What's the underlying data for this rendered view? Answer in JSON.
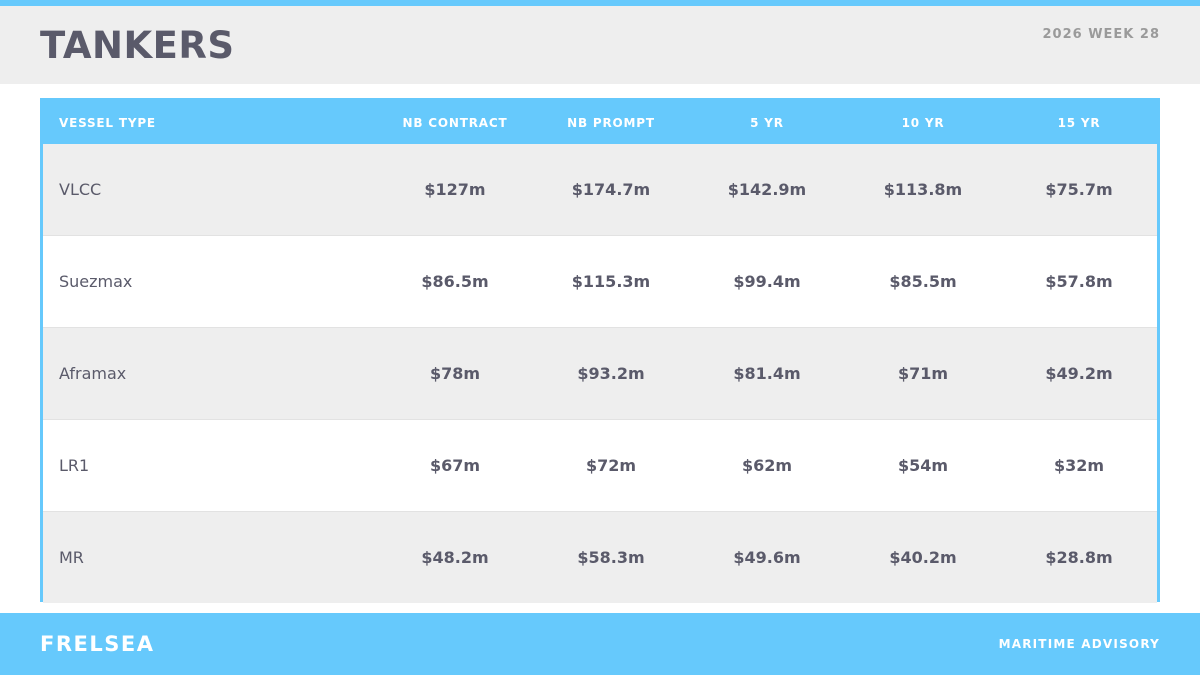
{
  "header": {
    "title": "TANKERS",
    "week": "2026 WEEK 28"
  },
  "table": {
    "columns": [
      "VESSEL TYPE",
      "NB CONTRACT",
      "NB PROMPT",
      "5 YR",
      "10 YR",
      "15 YR"
    ],
    "rows": [
      [
        "VLCC",
        "$127m",
        "$174.7m",
        "$142.9m",
        "$113.8m",
        "$75.7m"
      ],
      [
        "Suezmax",
        "$86.5m",
        "$115.3m",
        "$99.4m",
        "$85.5m",
        "$57.8m"
      ],
      [
        "Aframax",
        "$78m",
        "$93.2m",
        "$81.4m",
        "$71m",
        "$49.2m"
      ],
      [
        "LR1",
        "$67m",
        "$72m",
        "$62m",
        "$54m",
        "$32m"
      ],
      [
        "MR",
        "$48.2m",
        "$58.3m",
        "$49.6m",
        "$40.2m",
        "$28.8m"
      ]
    ]
  },
  "footer": {
    "brand": "FRELSEA",
    "tagline": "MARITIME ADVISORY"
  }
}
